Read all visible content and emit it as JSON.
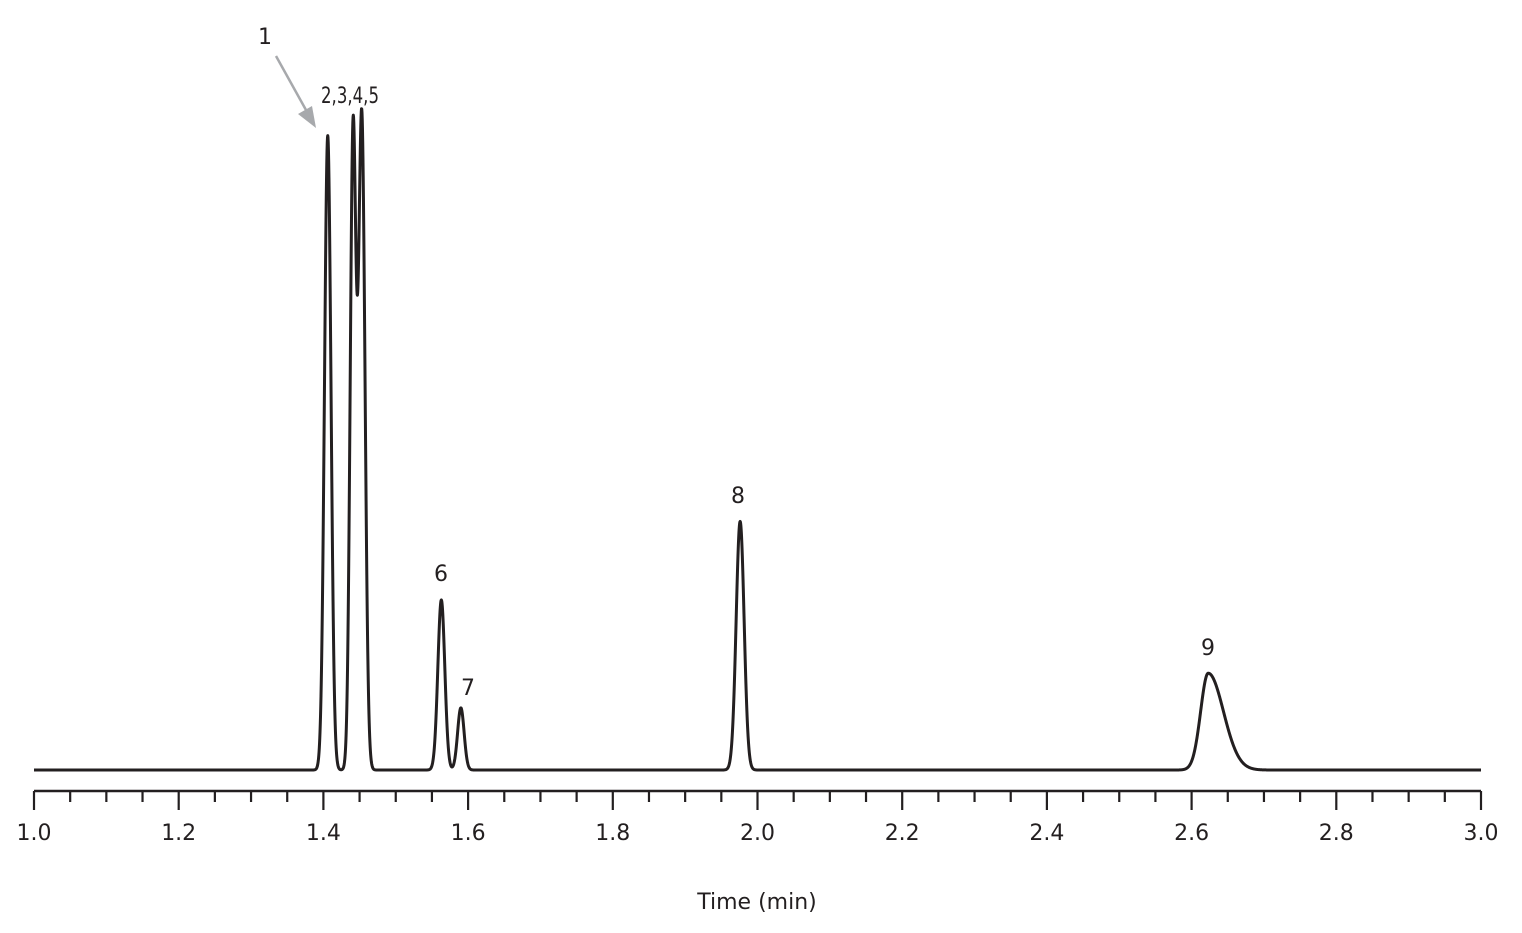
{
  "chart_data": {
    "type": "line",
    "title": "",
    "xlabel": "Time (min)",
    "ylabel": "",
    "xlim": [
      1.0,
      3.0
    ],
    "ylim": [
      0,
      100
    ],
    "grid": false,
    "legend": null,
    "x_ticks": {
      "major": [
        "1.0",
        "1.2",
        "1.4",
        "1.6",
        "1.8",
        "2.0",
        "2.2",
        "2.4",
        "2.6",
        "2.8",
        "3.0"
      ],
      "major_values": [
        1.0,
        1.2,
        1.4,
        1.6,
        1.8,
        2.0,
        2.2,
        2.4,
        2.6,
        2.8,
        3.0
      ],
      "minor_step": 0.05
    },
    "series": [
      {
        "name": "chromatogram",
        "color": "#231f20",
        "peaks": [
          {
            "label": "1",
            "time": 1.406,
            "height": 97.0,
            "width": 0.0045
          },
          {
            "label": "2,3",
            "time": 1.441,
            "height": 97.0,
            "width": 0.004
          },
          {
            "label": "4,5",
            "time": 1.453,
            "height": 100.0,
            "width": 0.0045
          },
          {
            "label": "6",
            "time": 1.563,
            "height": 26.0,
            "width": 0.0048
          },
          {
            "label": "7",
            "time": 1.59,
            "height": 9.5,
            "width": 0.0045
          },
          {
            "label": "8",
            "time": 1.976,
            "height": 38.0,
            "width": 0.0055
          },
          {
            "label": "9",
            "time": 2.623,
            "height": 14.8,
            "width": 0.0105,
            "tailing": 2.0
          }
        ]
      }
    ],
    "annotations": [
      {
        "text": "1",
        "type": "arrow-label",
        "target_time": 1.406,
        "color": "#a7a9ac"
      },
      {
        "text": "2,3,4,5",
        "type": "label",
        "time": 1.447
      },
      {
        "text": "6",
        "type": "label",
        "time": 1.563
      },
      {
        "text": "7",
        "type": "label",
        "time": 1.592
      },
      {
        "text": "8",
        "type": "label",
        "time": 1.976
      },
      {
        "text": "9",
        "type": "label",
        "time": 2.623
      }
    ]
  },
  "labels": {
    "peak_1": "1",
    "peak_2345": "2,3,4,5",
    "peak_6": "6",
    "peak_7": "7",
    "peak_8": "8",
    "peak_9": "9",
    "x_axis_title": "Time (min)"
  }
}
